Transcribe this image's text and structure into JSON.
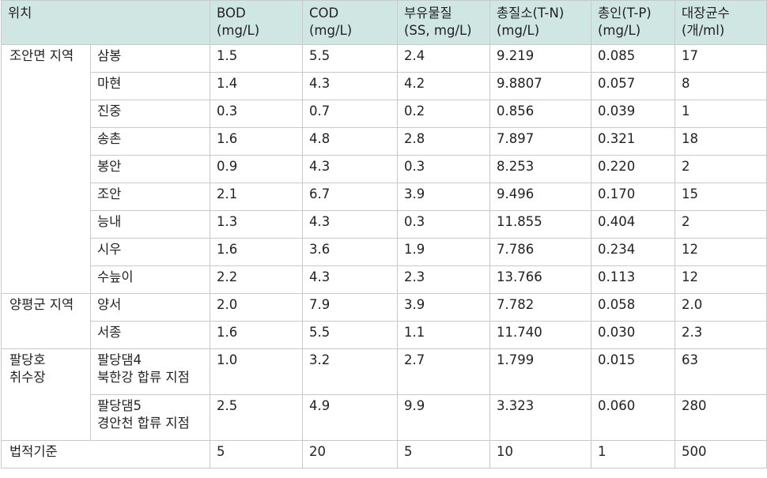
{
  "header": {
    "location": "위치",
    "bod": [
      "BOD",
      "(mg/L)"
    ],
    "cod": [
      "COD",
      "(mg/L)"
    ],
    "ss": [
      "부유물질",
      "(SS, mg/L)"
    ],
    "tn": [
      "총질소(T-N)",
      "(mg/L)"
    ],
    "tp": [
      "총인(T-P)",
      "(mg/L)"
    ],
    "coliform": [
      "대장균수",
      "(개/ml)"
    ]
  },
  "groups": [
    {
      "region": [
        "조안면 지역"
      ],
      "rows": [
        {
          "site": [
            "삼봉"
          ],
          "bod": "1.5",
          "cod": "5.5",
          "ss": "2.4",
          "tn": "9.219",
          "tp": "0.085",
          "coliform": "17"
        },
        {
          "site": [
            "마현"
          ],
          "bod": "1.4",
          "cod": "4.3",
          "ss": "4.2",
          "tn": "9.8807",
          "tp": "0.057",
          "coliform": "8"
        },
        {
          "site": [
            "진중"
          ],
          "bod": "0.3",
          "cod": "0.7",
          "ss": "0.2",
          "tn": "0.856",
          "tp": "0.039",
          "coliform": "1"
        },
        {
          "site": [
            "송촌"
          ],
          "bod": "1.6",
          "cod": "4.8",
          "ss": "2.8",
          "tn": "7.897",
          "tp": "0.321",
          "coliform": "18"
        },
        {
          "site": [
            "봉안"
          ],
          "bod": "0.9",
          "cod": "4.3",
          "ss": "0.3",
          "tn": "8.253",
          "tp": "0.220",
          "coliform": "2"
        },
        {
          "site": [
            "조안"
          ],
          "bod": "2.1",
          "cod": "6.7",
          "ss": "3.9",
          "tn": "9.496",
          "tp": "0.170",
          "coliform": "15"
        },
        {
          "site": [
            "능내"
          ],
          "bod": "1.3",
          "cod": "4.3",
          "ss": "0.3",
          "tn": "11.855",
          "tp": "0.404",
          "coliform": "2"
        },
        {
          "site": [
            "시우"
          ],
          "bod": "1.6",
          "cod": "3.6",
          "ss": "1.9",
          "tn": "7.786",
          "tp": "0.234",
          "coliform": "12"
        },
        {
          "site": [
            "수늪이"
          ],
          "bod": "2.2",
          "cod": "4.3",
          "ss": "2.3",
          "tn": "13.766",
          "tp": "0.113",
          "coliform": "12"
        }
      ]
    },
    {
      "region": [
        "양평군 지역"
      ],
      "rows": [
        {
          "site": [
            "양서"
          ],
          "bod": "2.0",
          "cod": "7.9",
          "ss": "3.9",
          "tn": "7.782",
          "tp": "0.058",
          "coliform": "2.0"
        },
        {
          "site": [
            "서종"
          ],
          "bod": "1.6",
          "cod": "5.5",
          "ss": "1.1",
          "tn": "11.740",
          "tp": "0.030",
          "coliform": "2.3"
        }
      ]
    },
    {
      "region": [
        "팔당호",
        "취수장"
      ],
      "rows": [
        {
          "site": [
            "팔당댐4",
            "북한강 합류 지점"
          ],
          "bod": "1.0",
          "cod": "3.2",
          "ss": "2.7",
          "tn": "1.799",
          "tp": "0.015",
          "coliform": "63"
        },
        {
          "site": [
            "팔당댐5",
            "경안천 합류 지점"
          ],
          "bod": "2.5",
          "cod": "4.9",
          "ss": "9.9",
          "tn": "3.323",
          "tp": "0.060",
          "coliform": "280"
        }
      ]
    }
  ],
  "standard": {
    "label": "법적기준",
    "bod": "5",
    "cod": "20",
    "ss": "5",
    "tn": "10",
    "tp": "1",
    "coliform": "500"
  }
}
